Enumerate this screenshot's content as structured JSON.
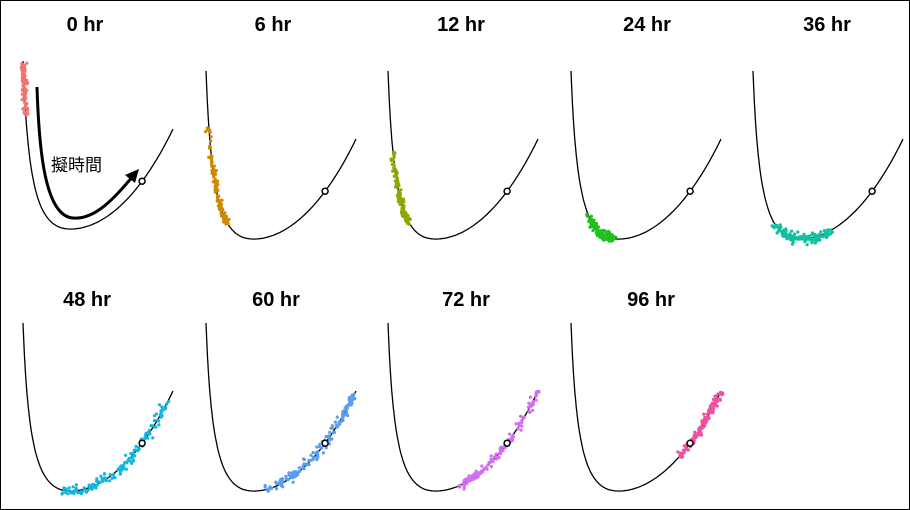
{
  "chart_data": {
    "type": "scatter",
    "description_note": "",
    "trajectory_annotation": "擬時間",
    "panels": [
      {
        "title": "0 hr",
        "color": "#f07470",
        "t_range": [
          0.0,
          0.07
        ],
        "n": 90,
        "jitter": 0.02
      },
      {
        "title": "6 hr",
        "color": "#d08a00",
        "t_range": [
          0.07,
          0.29
        ],
        "n": 110,
        "jitter": 0.02
      },
      {
        "title": "12 hr",
        "color": "#8aaa00",
        "t_range": [
          0.11,
          0.29
        ],
        "n": 110,
        "jitter": 0.02
      },
      {
        "title": "24 hr",
        "color": "#20c020",
        "t_range": [
          0.25,
          0.42
        ],
        "n": 130,
        "jitter": 0.035
      },
      {
        "title": "36 hr",
        "color": "#10c0a0",
        "t_range": [
          0.3,
          0.6
        ],
        "n": 130,
        "jitter": 0.035
      },
      {
        "title": "48 hr",
        "color": "#10b8e0",
        "t_range": [
          0.4,
          0.97
        ],
        "n": 150,
        "jitter": 0.035
      },
      {
        "title": "60 hr",
        "color": "#5c9df0",
        "t_range": [
          0.5,
          1.0
        ],
        "n": 150,
        "jitter": 0.035
      },
      {
        "title": "72 hr",
        "color": "#d070f0",
        "t_range": [
          0.55,
          1.0
        ],
        "n": 130,
        "jitter": 0.03
      },
      {
        "title": "96 hr",
        "color": "#f050a0",
        "t_range": [
          0.75,
          1.0
        ],
        "n": 130,
        "jitter": 0.02
      }
    ],
    "curve_color": "#000000",
    "marker_point_t": 0.82
  }
}
